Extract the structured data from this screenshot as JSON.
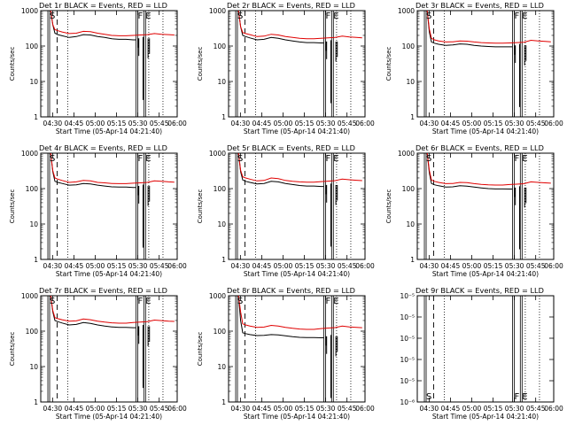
{
  "chart_data": {
    "type": "line",
    "start_time_label": "Start Time (05-Apr-14 04:21:40)",
    "ylabel": "Counts/sec",
    "x_ticks": [
      "04:30",
      "04:45",
      "05:00",
      "05:15",
      "05:30",
      "05:45",
      "06:00"
    ],
    "x_range_minutes": [
      0,
      96
    ],
    "y_scale": "log",
    "legend": "BLACK = Events, RED = LLD",
    "markers": [
      {
        "label": "S",
        "minute": 5,
        "style": "solid"
      },
      {
        "label": "F",
        "minute": 67,
        "style": "solid"
      },
      {
        "label": "E",
        "minute": 72.5,
        "style": "solid"
      }
    ],
    "panels": [
      {
        "title": "Det 1r BLACK = Events, RED = LLD",
        "ylim": [
          1,
          1000
        ],
        "yticks": [
          "1",
          "10",
          "100",
          "1000"
        ],
        "dashed_minute": 11.5,
        "dotted_minutes": [
          19,
          76,
          86
        ],
        "series": [
          {
            "color": "#000000",
            "x": [
              7,
              8.5,
              10,
              12,
              15,
              20,
              25,
              30,
              35,
              40,
              45,
              50,
              55,
              60,
              65,
              67
            ],
            "y": [
              1000,
              400,
              230,
              210,
              195,
              175,
              185,
              210,
              205,
              185,
              175,
              160,
              155,
              155,
              150,
              150
            ]
          },
          {
            "color": "#e00000",
            "x": [
              7,
              8.5,
              10,
              12,
              15,
              20,
              25,
              30,
              35,
              40,
              45,
              50,
              55,
              60,
              65,
              70,
              75,
              80,
              85,
              90,
              94
            ],
            "y": [
              1000,
              400,
              290,
              270,
              250,
              225,
              230,
              260,
              255,
              230,
              215,
              200,
              195,
              195,
              200,
              205,
              210,
              225,
              215,
              210,
              205
            ]
          }
        ]
      },
      {
        "title": "Det 2r BLACK = Events, RED = LLD",
        "ylim": [
          1,
          1000
        ],
        "yticks": [
          "1",
          "10",
          "100",
          "1000"
        ],
        "dashed_minute": 11.5,
        "dotted_minutes": [
          19,
          76,
          86
        ],
        "series": [
          {
            "color": "#000000",
            "x": [
              7,
              8.5,
              10,
              12,
              15,
              20,
              25,
              30,
              35,
              40,
              45,
              50,
              55,
              60,
              65,
              67
            ],
            "y": [
              1000,
              350,
              200,
              185,
              170,
              150,
              155,
              175,
              165,
              150,
              140,
              130,
              125,
              125,
              122,
              122
            ]
          },
          {
            "color": "#e00000",
            "x": [
              7,
              8.5,
              10,
              12,
              15,
              20,
              25,
              30,
              35,
              40,
              45,
              50,
              55,
              60,
              65,
              70,
              75,
              80,
              85,
              90,
              94
            ],
            "y": [
              1000,
              350,
              240,
              225,
              210,
              185,
              190,
              215,
              205,
              185,
              175,
              165,
              160,
              160,
              165,
              170,
              175,
              190,
              180,
              175,
              170
            ]
          }
        ]
      },
      {
        "title": "Det 3r BLACK = Events, RED = LLD",
        "ylim": [
          1,
          1000
        ],
        "yticks": [
          "1",
          "10",
          "100",
          "1000"
        ],
        "dashed_minute": 11.5,
        "dotted_minutes": [
          19,
          76,
          86
        ],
        "series": [
          {
            "color": "#000000",
            "x": [
              7,
              8.5,
              10,
              12,
              15,
              20,
              25,
              30,
              35,
              40,
              45,
              50,
              55,
              60,
              65,
              67
            ],
            "y": [
              1000,
              250,
              130,
              120,
              112,
              105,
              108,
              115,
              112,
              105,
              100,
              97,
              95,
              95,
              95,
              95
            ]
          },
          {
            "color": "#e00000",
            "x": [
              7,
              8.5,
              10,
              12,
              15,
              20,
              25,
              30,
              35,
              40,
              45,
              50,
              55,
              60,
              65,
              70,
              75,
              80,
              85,
              90,
              94
            ],
            "y": [
              1000,
              300,
              165,
              150,
              140,
              130,
              132,
              140,
              137,
              130,
              125,
              122,
              120,
              120,
              122,
              125,
              128,
              145,
              140,
              135,
              132
            ]
          }
        ]
      },
      {
        "title": "Det 4r BLACK = Events, RED = LLD",
        "ylim": [
          1,
          1000
        ],
        "yticks": [
          "1",
          "10",
          "100",
          "1000"
        ],
        "dashed_minute": 11.5,
        "dotted_minutes": [
          19,
          76,
          86
        ],
        "series": [
          {
            "color": "#000000",
            "x": [
              7,
              8.5,
              10,
              12,
              15,
              20,
              25,
              30,
              35,
              40,
              45,
              50,
              55,
              60,
              65,
              67
            ],
            "y": [
              1000,
              300,
              160,
              150,
              140,
              125,
              128,
              140,
              135,
              125,
              118,
              112,
              110,
              110,
              108,
              108
            ]
          },
          {
            "color": "#e00000",
            "x": [
              7,
              8.5,
              10,
              12,
              15,
              20,
              25,
              30,
              35,
              40,
              45,
              50,
              55,
              60,
              65,
              70,
              75,
              80,
              85,
              90,
              94
            ],
            "y": [
              1000,
              320,
              200,
              185,
              170,
              150,
              155,
              170,
              165,
              150,
              145,
              140,
              138,
              138,
              142,
              145,
              150,
              165,
              160,
              155,
              152
            ]
          }
        ]
      },
      {
        "title": "Det 5r BLACK = Events, RED = LLD",
        "ylim": [
          1,
          1000
        ],
        "yticks": [
          "1",
          "10",
          "100",
          "1000"
        ],
        "dashed_minute": 11.5,
        "dotted_minutes": [
          19,
          76,
          86
        ],
        "series": [
          {
            "color": "#000000",
            "x": [
              7,
              8.5,
              10,
              12,
              15,
              20,
              25,
              30,
              35,
              40,
              45,
              50,
              55,
              60,
              65,
              67
            ],
            "y": [
              1000,
              300,
              175,
              160,
              150,
              135,
              140,
              160,
              155,
              140,
              130,
              122,
              118,
              118,
              115,
              115
            ]
          },
          {
            "color": "#e00000",
            "x": [
              7,
              8.5,
              10,
              12,
              15,
              20,
              25,
              30,
              35,
              40,
              45,
              50,
              55,
              60,
              65,
              70,
              75,
              80,
              85,
              90,
              94
            ],
            "y": [
              1000,
              330,
              215,
              200,
              185,
              165,
              170,
              200,
              190,
              170,
              160,
              155,
              152,
              152,
              158,
              162,
              168,
              185,
              178,
              172,
              168
            ]
          }
        ]
      },
      {
        "title": "Det 6r BLACK = Events, RED = LLD",
        "ylim": [
          1,
          1000
        ],
        "yticks": [
          "1",
          "10",
          "100",
          "1000"
        ],
        "dashed_minute": 11.5,
        "dotted_minutes": [
          19,
          76,
          86
        ],
        "series": [
          {
            "color": "#000000",
            "x": [
              7,
              8.5,
              10,
              12,
              15,
              20,
              25,
              30,
              35,
              40,
              45,
              50,
              55,
              60,
              65,
              67
            ],
            "y": [
              1000,
              280,
              140,
              128,
              120,
              110,
              112,
              120,
              117,
              110,
              105,
              100,
              98,
              98,
              97,
              97
            ]
          },
          {
            "color": "#e00000",
            "x": [
              7,
              8.5,
              10,
              12,
              15,
              20,
              25,
              30,
              35,
              40,
              45,
              50,
              55,
              60,
              65,
              70,
              75,
              80,
              85,
              90,
              94
            ],
            "y": [
              1000,
              330,
              175,
              160,
              150,
              138,
              140,
              150,
              147,
              138,
              132,
              128,
              126,
              126,
              130,
              133,
              137,
              155,
              150,
              145,
              142
            ]
          }
        ]
      },
      {
        "title": "Det 7r BLACK = Events, RED = LLD",
        "ylim": [
          1,
          1000
        ],
        "yticks": [
          "1",
          "10",
          "100",
          "1000"
        ],
        "dashed_minute": 11.5,
        "dotted_minutes": [
          19,
          76,
          86
        ],
        "series": [
          {
            "color": "#000000",
            "x": [
              7,
              8.5,
              10,
              12,
              15,
              20,
              25,
              30,
              35,
              40,
              45,
              50,
              55,
              60,
              65,
              67
            ],
            "y": [
              1000,
              350,
              200,
              185,
              170,
              150,
              155,
              175,
              165,
              150,
              140,
              132,
              128,
              128,
              125,
              125
            ]
          },
          {
            "color": "#e00000",
            "x": [
              7,
              8.5,
              10,
              12,
              15,
              20,
              25,
              30,
              35,
              40,
              45,
              50,
              55,
              60,
              65,
              70,
              75,
              80,
              85,
              90,
              94
            ],
            "y": [
              1000,
              380,
              240,
              225,
              210,
              190,
              195,
              220,
              210,
              190,
              180,
              172,
              168,
              168,
              175,
              180,
              185,
              205,
              198,
              192,
              188
            ]
          }
        ]
      },
      {
        "title": "Det 8r BLACK = Events, RED = LLD",
        "ylim": [
          1,
          1000
        ],
        "yticks": [
          "1",
          "10",
          "100",
          "1000"
        ],
        "dashed_minute": 11.5,
        "dotted_minutes": [
          19,
          76,
          86
        ],
        "series": [
          {
            "color": "#000000",
            "x": [
              7,
              8.5,
              10,
              12,
              15,
              20,
              25,
              30,
              35,
              40,
              45,
              50,
              55,
              60,
              65,
              67
            ],
            "y": [
              1000,
              200,
              90,
              85,
              80,
              75,
              76,
              80,
              78,
              74,
              70,
              67,
              66,
              66,
              65,
              65
            ]
          },
          {
            "color": "#e00000",
            "x": [
              7,
              8.5,
              10,
              12,
              15,
              20,
              25,
              30,
              35,
              40,
              45,
              50,
              55,
              60,
              65,
              70,
              75,
              80,
              85,
              90,
              94
            ],
            "y": [
              1000,
              350,
              160,
              150,
              140,
              128,
              130,
              145,
              140,
              128,
              120,
              115,
              112,
              112,
              118,
              122,
              126,
              140,
              132,
              128,
              125
            ]
          }
        ]
      },
      {
        "title": "Det 9r BLACK = Events, RED = LLD",
        "ylim": [
          1e-06,
          1e-05
        ],
        "yticks": [
          "10⁻⁶",
          "10⁻⁵",
          "10⁻⁵",
          "10⁻⁵",
          "10⁻⁵",
          "10⁻⁵"
        ],
        "dashed_minute": 11.5,
        "dotted_minutes": [
          19,
          76,
          86
        ],
        "series": []
      }
    ]
  }
}
